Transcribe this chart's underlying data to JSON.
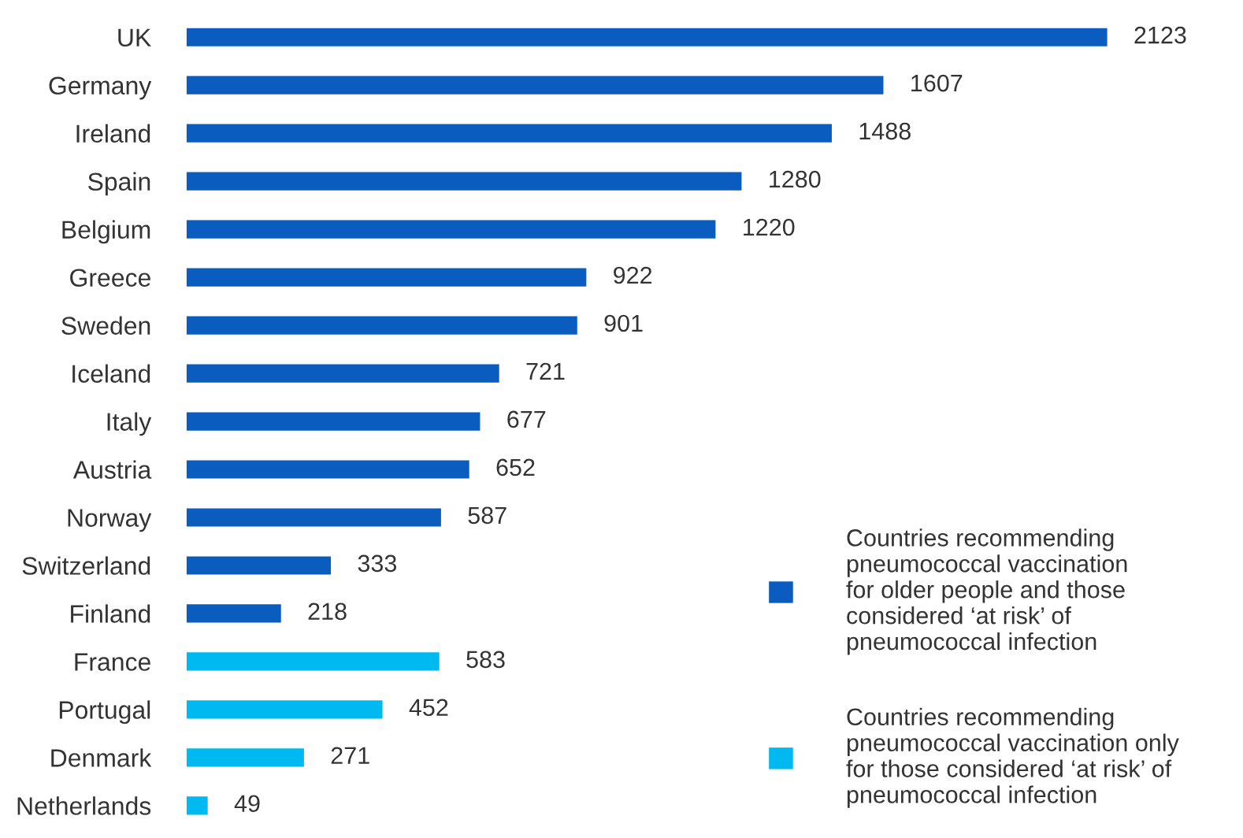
{
  "chart_data": {
    "type": "bar",
    "orientation": "horizontal",
    "categories": [
      "UK",
      "Germany",
      "Ireland",
      "Spain",
      "Belgium",
      "Greece",
      "Sweden",
      "Iceland",
      "Italy",
      "Austria",
      "Norway",
      "Switzerland",
      "Finland",
      "France",
      "Portugal",
      "Denmark",
      "Netherlands"
    ],
    "series": [
      {
        "name": "Countries recommending\npneumococcal vaccination\nfor older people and those\nconsidered ‘at risk’ of\npneumococcal infection",
        "color": "#0a5cbe",
        "values": [
          2123,
          1607,
          1488,
          1280,
          1220,
          922,
          901,
          721,
          677,
          652,
          587,
          333,
          218,
          null,
          null,
          null,
          null
        ]
      },
      {
        "name": "Countries recommending\npneumococcal vaccination only\nfor those considered ‘at risk’ of\npneumococcal infection",
        "color": "#00b9f1",
        "values": [
          null,
          null,
          null,
          null,
          null,
          null,
          null,
          null,
          null,
          null,
          null,
          null,
          null,
          583,
          452,
          271,
          49
        ]
      }
    ],
    "data_labels": true,
    "legend": "bottom right",
    "grid": false
  }
}
